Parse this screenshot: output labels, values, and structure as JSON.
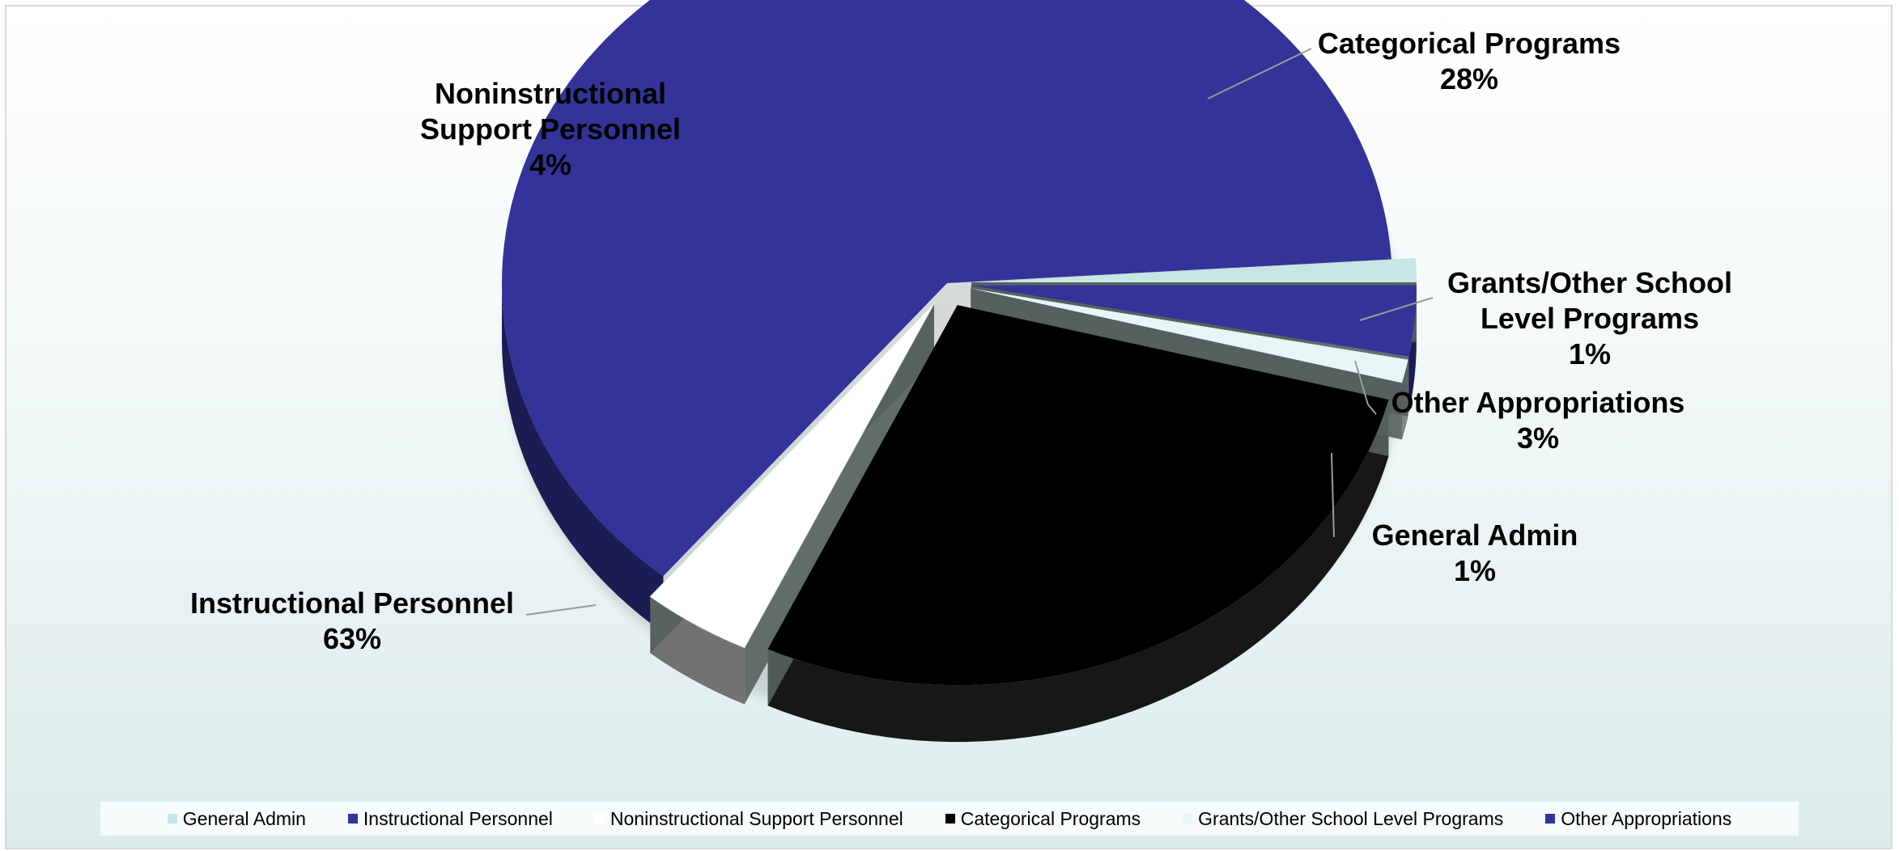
{
  "chart_data": {
    "type": "pie",
    "style": "3d-exploded",
    "title": "",
    "legend_position": "bottom",
    "slices": [
      {
        "label": "General Admin",
        "percent": 1,
        "label_text": "1%",
        "color": "#c6e6e6"
      },
      {
        "label": "Instructional Personnel",
        "percent": 63,
        "label_text": "63%",
        "color": "#333399"
      },
      {
        "label": "Noninstructional Support Personnel",
        "percent": 4,
        "label_text": "4%",
        "color": "#ffffff"
      },
      {
        "label": "Categorical Programs",
        "percent": 28,
        "label_text": "28%",
        "color": "#000000"
      },
      {
        "label": "Grants/Other School Level Programs",
        "percent": 1,
        "label_text": "1%",
        "color": "#e6f6f6"
      },
      {
        "label": "Other Appropriations",
        "percent": 3,
        "label_text": "3%",
        "color": "#333399"
      }
    ]
  },
  "labels": {
    "general_admin": {
      "line1": "General Admin",
      "pct": "1%"
    },
    "instructional": {
      "line1": "Instructional Personnel",
      "pct": "63%"
    },
    "noninstructional": {
      "line1": "Noninstructional",
      "line2": "Support Personnel",
      "pct": "4%"
    },
    "categorical": {
      "line1": "Categorical Programs",
      "pct": "28%"
    },
    "grants": {
      "line1": "Grants/Other School",
      "line2": "Level Programs",
      "pct": "1%"
    },
    "other": {
      "line1": "Other Appropriations",
      "pct": "3%"
    }
  },
  "legend": [
    {
      "label": "General Admin",
      "color": "#c6e6e6"
    },
    {
      "label": "Instructional Personnel",
      "color": "#333399"
    },
    {
      "label": "Noninstructional Support Personnel",
      "color": "#ffffff"
    },
    {
      "label": "Categorical Programs",
      "color": "#000000"
    },
    {
      "label": "Grants/Other School Level Programs",
      "color": "#e6f6f6"
    },
    {
      "label": "Other Appropriations",
      "color": "#333399"
    }
  ]
}
